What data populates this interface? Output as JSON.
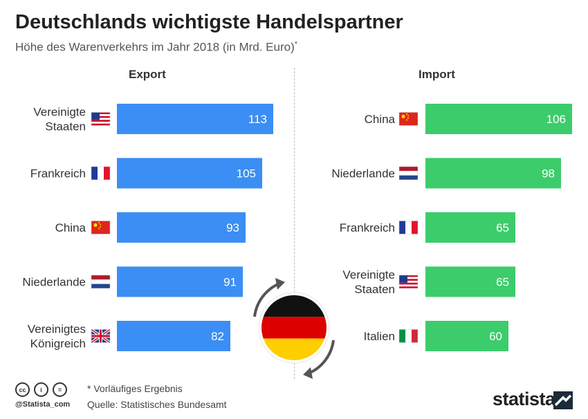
{
  "title": "Deutschlands wichtigste Handelspartner",
  "subtitle": "Höhe des Warenverkehrs im Jahr 2018 (in Mrd. Euro)",
  "subtitle_marker": "*",
  "footnote": "* Vorläufiges Ergebnis",
  "source": "Quelle: Statistisches Bundesamt",
  "license_handle": "@Statista_com",
  "brand": "statista",
  "colors": {
    "export": "#3b8ef3",
    "import": "#3ccc6c"
  },
  "center_graphic": {
    "flag": "Germany",
    "icon": "exchange-arrows-icon"
  },
  "chart_data": [
    {
      "type": "bar",
      "orientation": "horizontal",
      "title": "Export",
      "categories": [
        [
          "Vereinigte",
          "Staaten"
        ],
        [
          "Frankreich"
        ],
        [
          "China"
        ],
        [
          "Niederlande"
        ],
        [
          "Vereinigtes",
          "Königreich"
        ]
      ],
      "flags": [
        "us",
        "fr",
        "cn",
        "nl",
        "uk"
      ],
      "values": [
        113,
        105,
        93,
        91,
        82
      ],
      "color": "#3b8ef3",
      "xlim": [
        0,
        113
      ]
    },
    {
      "type": "bar",
      "orientation": "horizontal",
      "title": "Import",
      "categories": [
        [
          "China"
        ],
        [
          "Niederlande"
        ],
        [
          "Frankreich"
        ],
        [
          "Vereinigte",
          "Staaten"
        ],
        [
          "Italien"
        ]
      ],
      "flags": [
        "cn",
        "nl",
        "fr",
        "us",
        "it"
      ],
      "values": [
        106,
        98,
        65,
        65,
        60
      ],
      "color": "#3ccc6c",
      "xlim": [
        0,
        106
      ]
    }
  ]
}
